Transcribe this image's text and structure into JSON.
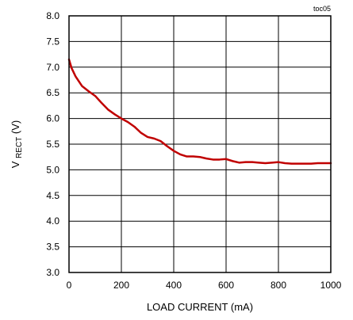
{
  "chart_data": {
    "type": "line",
    "figure_id": "toc05",
    "xlabel": "LOAD CURRENT (mA)",
    "ylabel": {
      "main": "V",
      "subscript": "RECT",
      "suffix": " (V)"
    },
    "xlim": [
      0,
      1000
    ],
    "ylim": [
      3.0,
      8.0
    ],
    "x_ticks": [
      0,
      200,
      400,
      600,
      800,
      1000
    ],
    "y_ticks": [
      3.0,
      3.5,
      4.0,
      4.5,
      5.0,
      5.5,
      6.0,
      6.5,
      7.0,
      7.5,
      8.0
    ],
    "x_tick_labels": [
      "0",
      "200",
      "400",
      "600",
      "800",
      "1000"
    ],
    "y_tick_labels": [
      "3.0",
      "3.5",
      "4.0",
      "4.5",
      "5.0",
      "5.5",
      "6.0",
      "6.5",
      "7.0",
      "7.5",
      "8.0"
    ],
    "grid": true,
    "series": [
      {
        "color": "#c00000",
        "x": [
          0,
          10,
          25,
          50,
          75,
          100,
          125,
          150,
          175,
          200,
          225,
          250,
          275,
          300,
          325,
          350,
          375,
          400,
          425,
          450,
          475,
          500,
          525,
          550,
          575,
          600,
          625,
          650,
          675,
          700,
          725,
          750,
          775,
          800,
          825,
          850,
          875,
          900,
          925,
          950,
          975,
          1000
        ],
        "y": [
          7.15,
          6.98,
          6.82,
          6.63,
          6.53,
          6.44,
          6.3,
          6.17,
          6.08,
          6.0,
          5.93,
          5.84,
          5.72,
          5.64,
          5.61,
          5.56,
          5.46,
          5.37,
          5.3,
          5.26,
          5.26,
          5.25,
          5.22,
          5.2,
          5.2,
          5.21,
          5.17,
          5.14,
          5.15,
          5.15,
          5.14,
          5.13,
          5.14,
          5.15,
          5.13,
          5.12,
          5.12,
          5.12,
          5.12,
          5.13,
          5.13,
          5.13
        ]
      }
    ]
  }
}
